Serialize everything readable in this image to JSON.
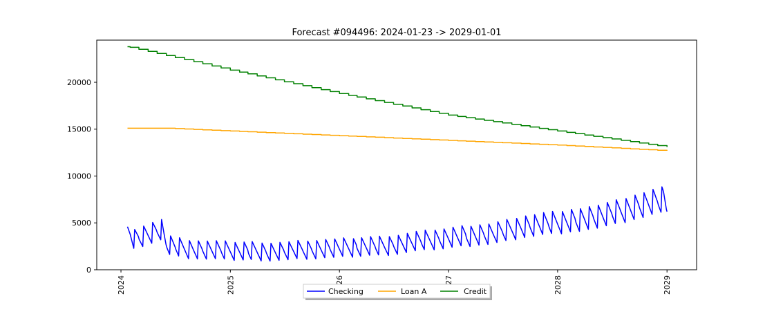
{
  "chart_data": {
    "type": "line",
    "title": "Forecast #094496: 2024-01-23 -> 2029-01-01",
    "xlabel": "",
    "ylabel": "",
    "x_range": [
      "2023-10-12",
      "2029-04-10"
    ],
    "xticks": [
      "2024",
      "2025",
      "2026",
      "2027",
      "2028",
      "2029"
    ],
    "ylim": [
      0,
      24500
    ],
    "yticks": [
      0,
      5000,
      10000,
      15000,
      20000
    ],
    "grid": false,
    "legend_position": "bottom-center",
    "series": [
      {
        "name": "Checking",
        "color": "#0000ff",
        "style": "sawtooth",
        "points": [
          [
            "2024-01-23",
            4000
          ],
          [
            "2024-02-01",
            3900
          ],
          [
            "2024-02-15",
            3200
          ],
          [
            "2024-03-15",
            3600
          ],
          [
            "2024-04-15",
            3900
          ],
          [
            "2024-05-15",
            4300
          ],
          [
            "2024-06-01",
            2600
          ],
          [
            "2024-07-01",
            2400
          ],
          [
            "2024-09-01",
            2100
          ],
          [
            "2025-01-01",
            2000
          ],
          [
            "2025-06-01",
            1900
          ],
          [
            "2025-09-01",
            2100
          ],
          [
            "2026-01-01",
            2300
          ],
          [
            "2026-06-01",
            2500
          ],
          [
            "2026-09-01",
            2900
          ],
          [
            "2027-01-01",
            3400
          ],
          [
            "2027-06-01",
            3800
          ],
          [
            "2027-09-01",
            4500
          ],
          [
            "2028-01-01",
            5000
          ],
          [
            "2028-06-01",
            5700
          ],
          [
            "2028-09-01",
            6500
          ],
          [
            "2028-12-20",
            7400
          ],
          [
            "2029-01-01",
            6200
          ]
        ]
      },
      {
        "name": "Loan A",
        "color": "#ffa500",
        "style": "step",
        "points": [
          [
            "2024-01-23",
            15100
          ],
          [
            "2024-06-01",
            15100
          ],
          [
            "2025-01-01",
            14800
          ],
          [
            "2026-01-01",
            14300
          ],
          [
            "2027-01-01",
            13800
          ],
          [
            "2028-01-01",
            13300
          ],
          [
            "2029-01-01",
            12700
          ]
        ]
      },
      {
        "name": "Credit",
        "color": "#008000",
        "style": "step",
        "points": [
          [
            "2024-01-23",
            23800
          ],
          [
            "2025-01-01",
            21300
          ],
          [
            "2026-01-01",
            18800
          ],
          [
            "2027-01-01",
            16500
          ],
          [
            "2028-01-01",
            14800
          ],
          [
            "2029-01-01",
            13100
          ]
        ]
      }
    ]
  }
}
